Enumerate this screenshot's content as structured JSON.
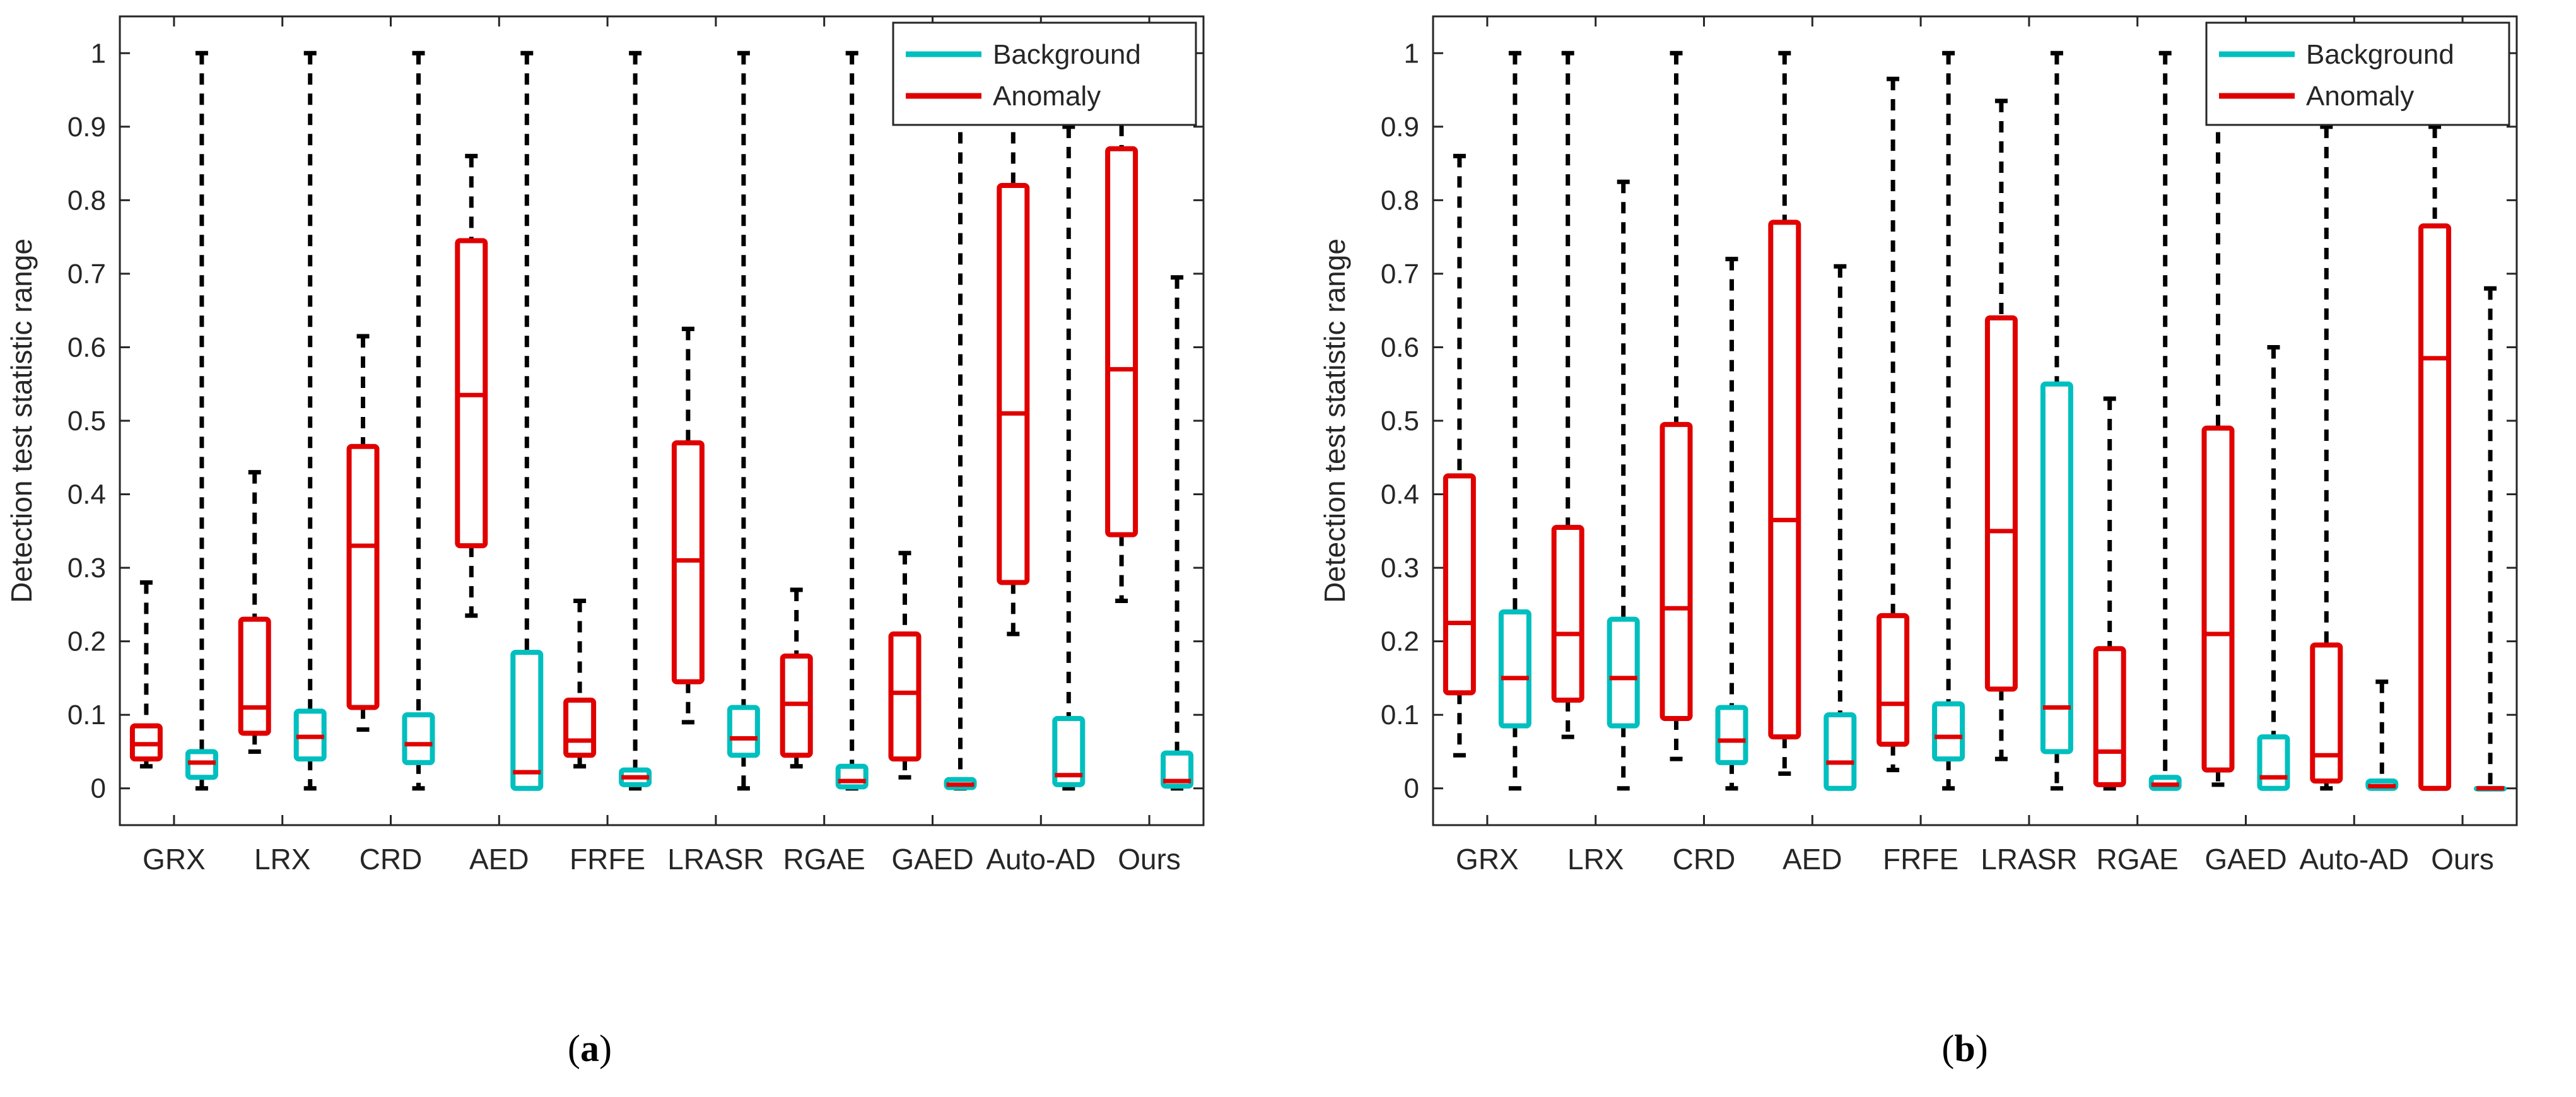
{
  "colors": {
    "background": "#00BFBF",
    "anomaly": "#E00000",
    "axis": "#262626"
  },
  "chart_data": [
    {
      "type": "box",
      "panel": "a",
      "caption_letter": "a",
      "ylabel": "Detection test statistic range",
      "xlabel": "",
      "ylim": [
        -0.05,
        1.05
      ],
      "yticks": [
        0,
        0.1,
        0.2,
        0.3,
        0.4,
        0.5,
        0.6,
        0.7,
        0.8,
        0.9,
        1
      ],
      "ytick_labels": [
        "0",
        "0.1",
        "0.2",
        "0.3",
        "0.4",
        "0.5",
        "0.6",
        "0.7",
        "0.8",
        "0.9",
        "1"
      ],
      "categories": [
        "GRX",
        "LRX",
        "CRD",
        "AED",
        "FRFE",
        "LRASR",
        "RGAE",
        "GAED",
        "Auto-AD",
        "Ours"
      ],
      "legend": {
        "position": "top-right",
        "entries": [
          "Background",
          "Anomaly"
        ]
      },
      "series": [
        {
          "name": "Anomaly",
          "boxes": [
            {
              "whisker_low": 0.03,
              "q1": 0.04,
              "median": 0.06,
              "q3": 0.085,
              "whisker_high": 0.28
            },
            {
              "whisker_low": 0.05,
              "q1": 0.075,
              "median": 0.11,
              "q3": 0.23,
              "whisker_high": 0.43
            },
            {
              "whisker_low": 0.08,
              "q1": 0.11,
              "median": 0.33,
              "q3": 0.465,
              "whisker_high": 0.615
            },
            {
              "whisker_low": 0.235,
              "q1": 0.33,
              "median": 0.535,
              "q3": 0.745,
              "whisker_high": 0.86
            },
            {
              "whisker_low": 0.03,
              "q1": 0.045,
              "median": 0.065,
              "q3": 0.12,
              "whisker_high": 0.255
            },
            {
              "whisker_low": 0.09,
              "q1": 0.145,
              "median": 0.31,
              "q3": 0.47,
              "whisker_high": 0.625
            },
            {
              "whisker_low": 0.03,
              "q1": 0.045,
              "median": 0.115,
              "q3": 0.18,
              "whisker_high": 0.27
            },
            {
              "whisker_low": 0.015,
              "q1": 0.04,
              "median": 0.13,
              "q3": 0.21,
              "whisker_high": 0.32
            },
            {
              "whisker_low": 0.21,
              "q1": 0.28,
              "median": 0.51,
              "q3": 0.82,
              "whisker_high": 0.92
            },
            {
              "whisker_low": 0.255,
              "q1": 0.345,
              "median": 0.57,
              "q3": 0.87,
              "whisker_high": 0.93
            }
          ]
        },
        {
          "name": "Background",
          "boxes": [
            {
              "whisker_low": 0,
              "q1": 0.015,
              "median": 0.035,
              "q3": 0.05,
              "whisker_high": 1.0
            },
            {
              "whisker_low": 0,
              "q1": 0.04,
              "median": 0.07,
              "q3": 0.105,
              "whisker_high": 1.0
            },
            {
              "whisker_low": 0,
              "q1": 0.035,
              "median": 0.06,
              "q3": 0.1,
              "whisker_high": 1.0
            },
            {
              "whisker_low": 0,
              "q1": 0,
              "median": 0.022,
              "q3": 0.185,
              "whisker_high": 1.0
            },
            {
              "whisker_low": 0,
              "q1": 0.005,
              "median": 0.015,
              "q3": 0.025,
              "whisker_high": 1.0
            },
            {
              "whisker_low": 0,
              "q1": 0.045,
              "median": 0.068,
              "q3": 0.11,
              "whisker_high": 1.0
            },
            {
              "whisker_low": 0,
              "q1": 0.002,
              "median": 0.01,
              "q3": 0.03,
              "whisker_high": 1.0
            },
            {
              "whisker_low": 0,
              "q1": 0.001,
              "median": 0.005,
              "q3": 0.012,
              "whisker_high": 0.92
            },
            {
              "whisker_low": 0,
              "q1": 0.005,
              "median": 0.018,
              "q3": 0.095,
              "whisker_high": 0.9
            },
            {
              "whisker_low": 0,
              "q1": 0.003,
              "median": 0.01,
              "q3": 0.048,
              "whisker_high": 0.695
            }
          ]
        }
      ]
    },
    {
      "type": "box",
      "panel": "b",
      "caption_letter": "b",
      "ylabel": "Detection test statistic range",
      "xlabel": "",
      "ylim": [
        -0.05,
        1.05
      ],
      "yticks": [
        0,
        0.1,
        0.2,
        0.3,
        0.4,
        0.5,
        0.6,
        0.7,
        0.8,
        0.9,
        1
      ],
      "ytick_labels": [
        "0",
        "0.1",
        "0.2",
        "0.3",
        "0.4",
        "0.5",
        "0.6",
        "0.7",
        "0.8",
        "0.9",
        "1"
      ],
      "categories": [
        "GRX",
        "LRX",
        "CRD",
        "AED",
        "FRFE",
        "LRASR",
        "RGAE",
        "GAED",
        "Auto-AD",
        "Ours"
      ],
      "legend": {
        "position": "top-right",
        "entries": [
          "Background",
          "Anomaly"
        ]
      },
      "series": [
        {
          "name": "Anomaly",
          "boxes": [
            {
              "whisker_low": 0.045,
              "q1": 0.13,
              "median": 0.225,
              "q3": 0.425,
              "whisker_high": 0.86
            },
            {
              "whisker_low": 0.07,
              "q1": 0.12,
              "median": 0.21,
              "q3": 0.355,
              "whisker_high": 1.0
            },
            {
              "whisker_low": 0.04,
              "q1": 0.095,
              "median": 0.245,
              "q3": 0.495,
              "whisker_high": 1.0
            },
            {
              "whisker_low": 0.02,
              "q1": 0.07,
              "median": 0.365,
              "q3": 0.77,
              "whisker_high": 1.0
            },
            {
              "whisker_low": 0.025,
              "q1": 0.06,
              "median": 0.115,
              "q3": 0.235,
              "whisker_high": 0.965
            },
            {
              "whisker_low": 0.04,
              "q1": 0.135,
              "median": 0.35,
              "q3": 0.64,
              "whisker_high": 0.935
            },
            {
              "whisker_low": 0,
              "q1": 0.005,
              "median": 0.05,
              "q3": 0.19,
              "whisker_high": 0.53
            },
            {
              "whisker_low": 0.005,
              "q1": 0.025,
              "median": 0.21,
              "q3": 0.49,
              "whisker_high": 0.92
            },
            {
              "whisker_low": 0,
              "q1": 0.01,
              "median": 0.045,
              "q3": 0.195,
              "whisker_high": 0.9
            },
            {
              "whisker_low": 0,
              "q1": 0,
              "median": 0.585,
              "q3": 0.765,
              "whisker_high": 0.9
            }
          ]
        },
        {
          "name": "Background",
          "boxes": [
            {
              "whisker_low": 0,
              "q1": 0.085,
              "median": 0.15,
              "q3": 0.24,
              "whisker_high": 1.0
            },
            {
              "whisker_low": 0,
              "q1": 0.085,
              "median": 0.15,
              "q3": 0.23,
              "whisker_high": 0.825
            },
            {
              "whisker_low": 0,
              "q1": 0.035,
              "median": 0.065,
              "q3": 0.11,
              "whisker_high": 0.72
            },
            {
              "whisker_low": 0,
              "q1": 0,
              "median": 0.035,
              "q3": 0.1,
              "whisker_high": 0.71
            },
            {
              "whisker_low": 0,
              "q1": 0.04,
              "median": 0.07,
              "q3": 0.115,
              "whisker_high": 1.0
            },
            {
              "whisker_low": 0,
              "q1": 0.05,
              "median": 0.11,
              "q3": 0.55,
              "whisker_high": 1.0
            },
            {
              "whisker_low": 0,
              "q1": 0,
              "median": 0.005,
              "q3": 0.015,
              "whisker_high": 1.0
            },
            {
              "whisker_low": 0,
              "q1": 0,
              "median": 0.015,
              "q3": 0.07,
              "whisker_high": 0.6
            },
            {
              "whisker_low": 0,
              "q1": 0,
              "median": 0.003,
              "q3": 0.01,
              "whisker_high": 0.145
            },
            {
              "whisker_low": 0,
              "q1": 0,
              "median": 0,
              "q3": 0,
              "whisker_high": 0.68
            }
          ]
        }
      ]
    }
  ]
}
